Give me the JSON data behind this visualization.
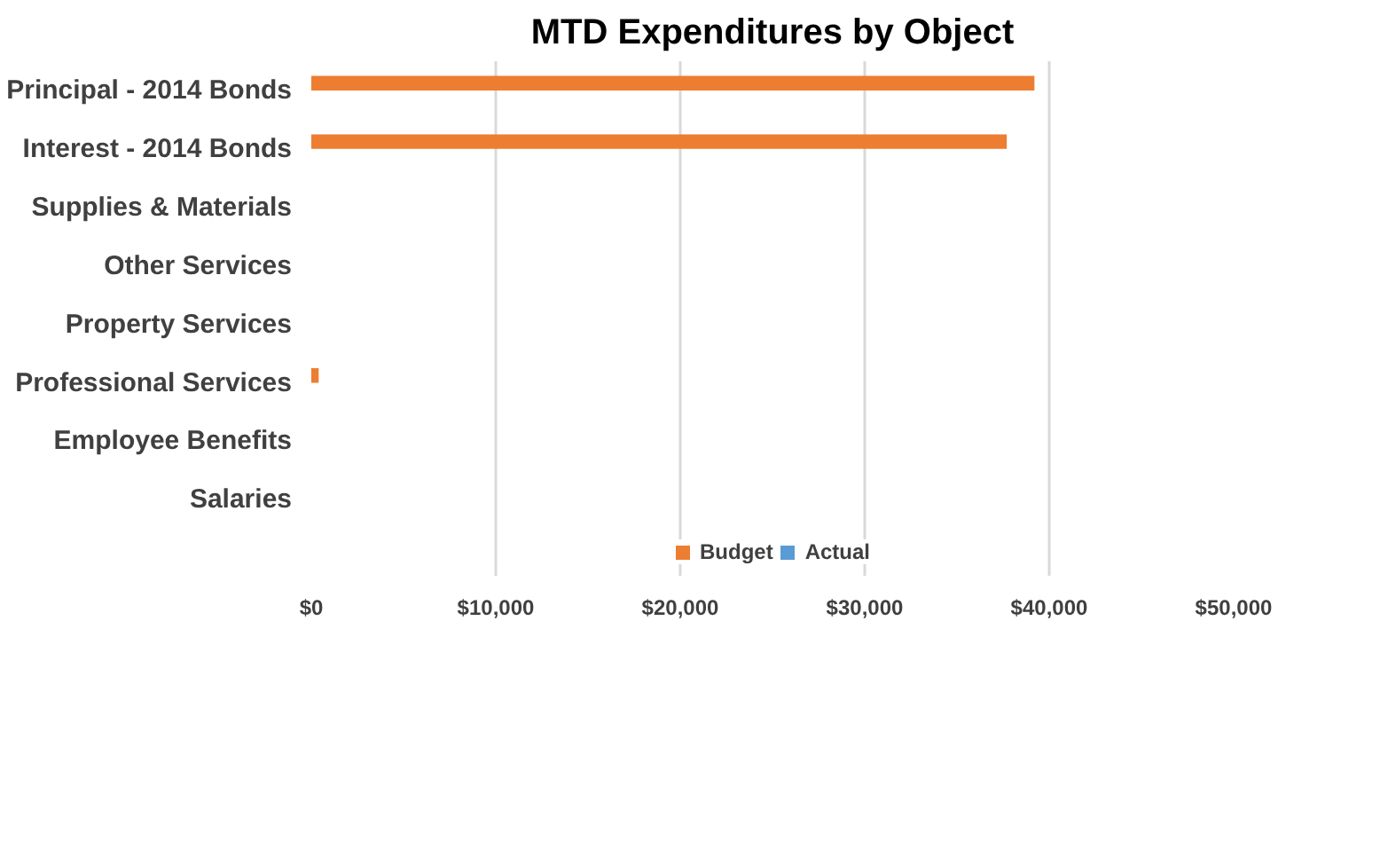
{
  "chart_data": {
    "type": "bar",
    "orientation": "horizontal",
    "title": "MTD Expenditures by Object",
    "categories": [
      "Principal - 2014 Bonds",
      "Interest - 2014 Bonds",
      "Supplies & Materials",
      "Other Services",
      "Property Services",
      "Professional Services",
      "Employee Benefits",
      "Salaries"
    ],
    "series": [
      {
        "name": "Budget",
        "color": "#ed7d31",
        "values": [
          39200,
          37700,
          0,
          0,
          0,
          400,
          0,
          0
        ]
      },
      {
        "name": "Actual",
        "color": "#5b9bd5",
        "values": [
          0,
          0,
          0,
          0,
          0,
          0,
          0,
          0
        ]
      }
    ],
    "xlim": [
      0,
      50000
    ],
    "xticks": [
      {
        "value": 0,
        "label": "$0"
      },
      {
        "value": 10000,
        "label": "$10,000"
      },
      {
        "value": 20000,
        "label": "$20,000"
      },
      {
        "value": 30000,
        "label": "$30,000"
      },
      {
        "value": 40000,
        "label": "$40,000"
      },
      {
        "value": 50000,
        "label": "$50,000"
      }
    ],
    "grid": "x",
    "legend": "bottom"
  }
}
